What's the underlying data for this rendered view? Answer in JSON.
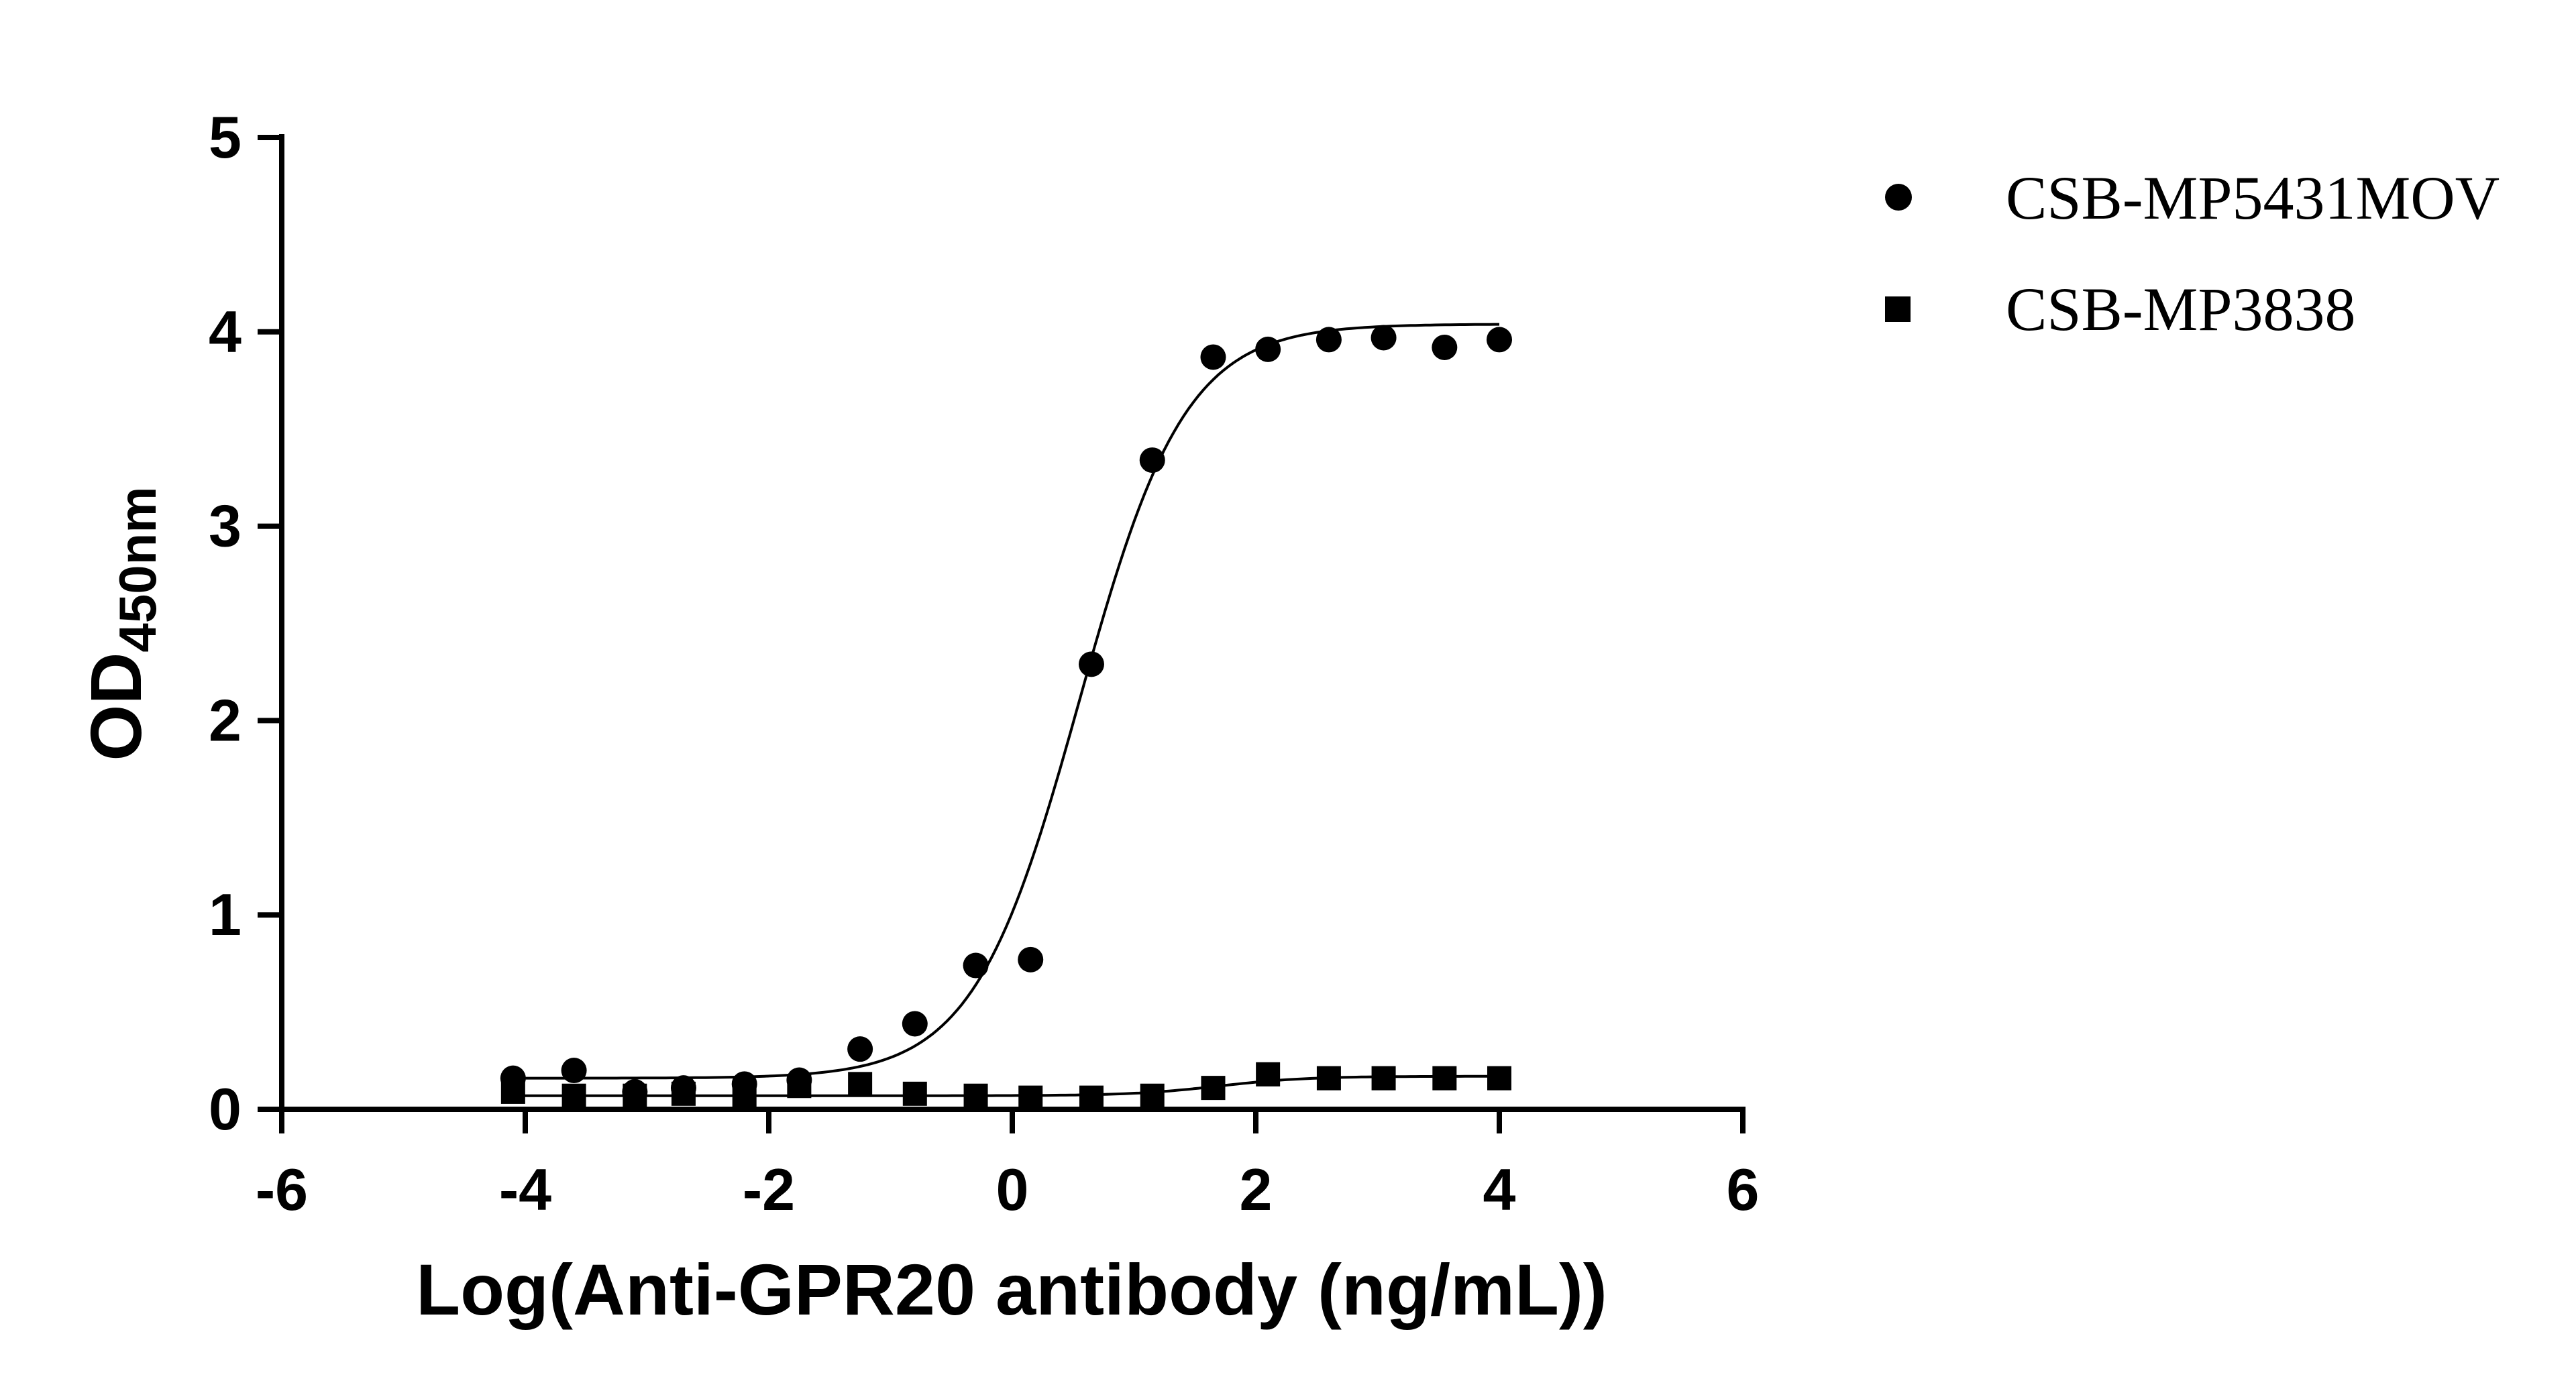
{
  "chart_data": {
    "type": "scatter",
    "title": "",
    "xlabel": "Log(Anti-GPR20 antibody (ng/mL))",
    "ylabel": {
      "main": "OD",
      "subscript": "450nm"
    },
    "xlim": [
      -6,
      6
    ],
    "ylim": [
      0,
      5
    ],
    "xticks": [
      "-6",
      "-4",
      "-2",
      "0",
      "2",
      "4",
      "6"
    ],
    "yticks": [
      "0",
      "1",
      "2",
      "3",
      "4",
      "5"
    ],
    "grid": false,
    "legend_position": "top-right",
    "series": [
      {
        "name": "CSB-MP5431MOV",
        "marker": "circle",
        "color": "#000000",
        "fit": {
          "model": "four-parameter logistic",
          "bottom": 0.16,
          "top": 4.04,
          "logEC50": 0.55,
          "hill": 1.0
        },
        "points": [
          {
            "x": -4.1,
            "y": 0.16
          },
          {
            "x": -3.6,
            "y": 0.2
          },
          {
            "x": -3.1,
            "y": 0.09
          },
          {
            "x": -2.7,
            "y": 0.11
          },
          {
            "x": -2.2,
            "y": 0.13
          },
          {
            "x": -1.75,
            "y": 0.15
          },
          {
            "x": -1.25,
            "y": 0.31
          },
          {
            "x": -0.8,
            "y": 0.44
          },
          {
            "x": -0.3,
            "y": 0.74
          },
          {
            "x": 0.15,
            "y": 0.77
          },
          {
            "x": 0.65,
            "y": 2.29
          },
          {
            "x": 1.15,
            "y": 3.34
          },
          {
            "x": 1.65,
            "y": 3.87
          },
          {
            "x": 2.1,
            "y": 3.91
          },
          {
            "x": 2.6,
            "y": 3.96
          },
          {
            "x": 3.05,
            "y": 3.97
          },
          {
            "x": 3.55,
            "y": 3.92
          },
          {
            "x": 4.0,
            "y": 3.96
          }
        ]
      },
      {
        "name": "CSB-MP3838",
        "marker": "square",
        "color": "#000000",
        "fit": {
          "model": "four-parameter logistic",
          "bottom": 0.07,
          "top": 0.17,
          "logEC50": 1.7,
          "hill": 1.2
        },
        "points": [
          {
            "x": -4.1,
            "y": 0.09
          },
          {
            "x": -3.6,
            "y": 0.07
          },
          {
            "x": -3.1,
            "y": 0.07
          },
          {
            "x": -2.7,
            "y": 0.08
          },
          {
            "x": -2.2,
            "y": 0.07
          },
          {
            "x": -1.75,
            "y": 0.12
          },
          {
            "x": -1.25,
            "y": 0.13
          },
          {
            "x": -0.8,
            "y": 0.08
          },
          {
            "x": -0.3,
            "y": 0.07
          },
          {
            "x": 0.15,
            "y": 0.06
          },
          {
            "x": 0.65,
            "y": 0.06
          },
          {
            "x": 1.15,
            "y": 0.07
          },
          {
            "x": 1.65,
            "y": 0.11
          },
          {
            "x": 2.1,
            "y": 0.18
          },
          {
            "x": 2.6,
            "y": 0.16
          },
          {
            "x": 3.05,
            "y": 0.16
          },
          {
            "x": 3.55,
            "y": 0.16
          },
          {
            "x": 4.0,
            "y": 0.16
          }
        ]
      }
    ]
  }
}
